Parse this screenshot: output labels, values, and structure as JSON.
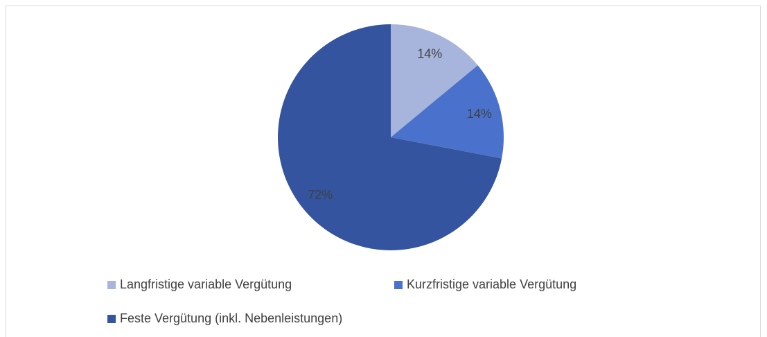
{
  "chart_data": {
    "type": "pie",
    "categories": [
      "Langfristige variable Vergütung",
      "Kurzfristige variable Vergütung",
      "Feste Vergütung (inkl. Nebenleistungen)"
    ],
    "values": [
      14,
      14,
      72
    ],
    "value_labels": [
      "14%",
      "14%",
      "72%"
    ],
    "colors": [
      "#a7b4dc",
      "#4a72cc",
      "#3454a0"
    ]
  }
}
